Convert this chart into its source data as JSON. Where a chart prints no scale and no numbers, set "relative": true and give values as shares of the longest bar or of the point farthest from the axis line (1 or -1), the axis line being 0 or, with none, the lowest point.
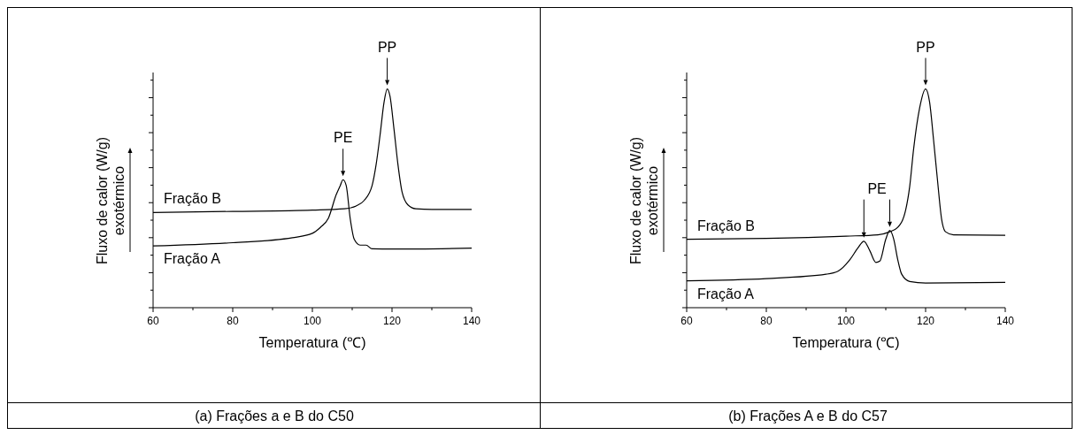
{
  "chart_data": [
    {
      "type": "line",
      "legend": "left",
      "title": "(a) Frações a e B do C50",
      "xlabel": "Temperatura (℃)",
      "ylabel": "Fluxo de calor (W/g)",
      "relative": true,
      "xlim": [
        60,
        140
      ],
      "xticks": [
        60,
        {
          "value": 70,
          "label": null
        },
        80,
        {
          "value": 90,
          "label": null
        },
        100,
        {
          "value": 110,
          "label": null
        },
        120,
        {
          "value": 130,
          "label": null
        },
        140
      ],
      "annotations": [
        "exotérmico",
        {
          "text": "PE",
          "x": 107.7,
          "y": 0.585
        },
        {
          "text": "PP",
          "x": 118.8,
          "y": 1
        }
      ],
      "series": [
        {
          "name": "Fração B",
          "color": "#000000",
          "x": [
            60,
            80,
            100,
            108,
            111,
            113,
            115,
            116,
            117,
            118,
            118.8,
            119.5,
            120.5,
            121.5,
            122.5,
            124,
            126,
            130,
            140
          ],
          "values": [
            0.435,
            0.44,
            0.446,
            0.452,
            0.465,
            0.49,
            0.558,
            0.653,
            0.789,
            0.939,
            1,
            0.966,
            0.816,
            0.653,
            0.531,
            0.47,
            0.452,
            0.449,
            0.449
          ]
        },
        {
          "name": "Fração A",
          "color": "#000000",
          "x": [
            60,
            80,
            95,
            100,
            102,
            104,
            106,
            107,
            107.7,
            108.5,
            109.5,
            110.5,
            112,
            113.5,
            115,
            120,
            140
          ],
          "values": [
            0.282,
            0.297,
            0.32,
            0.34,
            0.367,
            0.408,
            0.517,
            0.558,
            0.585,
            0.558,
            0.408,
            0.313,
            0.286,
            0.286,
            0.269,
            0.268,
            0.272
          ]
        }
      ]
    },
    {
      "type": "line",
      "legend": "left",
      "title": "(b) Frações A e B do C57",
      "xlabel": "Temperatura (℃)",
      "ylabel": "Fluxo de calor (W/g)",
      "relative": true,
      "xlim": [
        60,
        140
      ],
      "xticks": [
        60,
        {
          "value": 70,
          "label": null
        },
        80,
        {
          "value": 90,
          "label": null
        },
        100,
        {
          "value": 110,
          "label": null
        },
        120,
        {
          "value": 130,
          "label": null
        },
        140
      ],
      "annotations": [
        "exotérmico",
        {
          "text": "PE",
          "x": 107.8,
          "y": 0.353
        },
        {
          "text": "PP",
          "x": 120,
          "y": 1
        }
      ],
      "series": [
        {
          "name": "Fração B",
          "color": "#000000",
          "x": [
            60,
            80,
            100,
            108,
            111,
            113,
            115,
            116,
            117,
            118.5,
            120,
            121,
            122,
            123,
            124,
            125,
            127,
            140
          ],
          "values": [
            0.313,
            0.317,
            0.327,
            0.333,
            0.347,
            0.367,
            0.447,
            0.553,
            0.727,
            0.913,
            1,
            0.94,
            0.767,
            0.58,
            0.407,
            0.347,
            0.333,
            0.331
          ]
        },
        {
          "name": "Fração A",
          "color": "#000000",
          "x": [
            60,
            80,
            95,
            98,
            101,
            103,
            104.5,
            106,
            107.5,
            108.5,
            110,
            111,
            112,
            113,
            114,
            116,
            120,
            140
          ],
          "values": [
            0.123,
            0.133,
            0.153,
            0.167,
            0.22,
            0.273,
            0.304,
            0.26,
            0.207,
            0.213,
            0.313,
            0.353,
            0.313,
            0.22,
            0.153,
            0.12,
            0.113,
            0.116
          ]
        }
      ]
    }
  ]
}
